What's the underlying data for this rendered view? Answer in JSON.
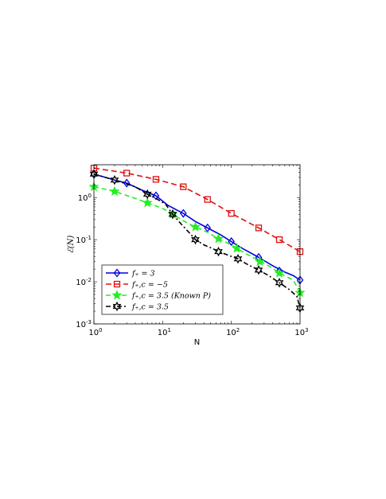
{
  "chart_data": {
    "type": "line",
    "xscale": "log",
    "yscale": "log",
    "xlim": [
      1,
      1000
    ],
    "ylim": [
      0.001,
      6
    ],
    "xlabel": "N",
    "ylabel": "ℰ(N)",
    "x_ticks": [
      {
        "value": 1,
        "base": "10",
        "exp": "0"
      },
      {
        "value": 10,
        "base": "10",
        "exp": "1"
      },
      {
        "value": 100,
        "base": "10",
        "exp": "2"
      },
      {
        "value": 1000,
        "base": "10",
        "exp": "3"
      }
    ],
    "y_ticks": [
      {
        "value": 0.001,
        "base": "10",
        "exp": "-3"
      },
      {
        "value": 0.01,
        "base": "10",
        "exp": "-2"
      },
      {
        "value": 0.1,
        "base": "10",
        "exp": "-1"
      },
      {
        "value": 1,
        "base": "10",
        "exp": "0"
      }
    ],
    "grid": false,
    "legend_position": "bottom-left",
    "series": [
      {
        "name": "f₊ = 3",
        "color": "#0000e0",
        "dash": "",
        "marker": "diamond",
        "line": [
          [
            1,
            3.6
          ],
          [
            2,
            2.6
          ],
          [
            3,
            2.2
          ],
          [
            5,
            1.5
          ],
          [
            8,
            1.1
          ],
          [
            12,
            0.65
          ],
          [
            20,
            0.42
          ],
          [
            30,
            0.27
          ],
          [
            45,
            0.19
          ],
          [
            70,
            0.13
          ],
          [
            100,
            0.09
          ],
          [
            150,
            0.06
          ],
          [
            250,
            0.038
          ],
          [
            400,
            0.024
          ],
          [
            600,
            0.017
          ],
          [
            800,
            0.014
          ],
          [
            1000,
            0.011
          ]
        ],
        "markers": [
          [
            1,
            3.6
          ],
          [
            3,
            2.2
          ],
          [
            8,
            1.1
          ],
          [
            20,
            0.42
          ],
          [
            45,
            0.19
          ],
          [
            100,
            0.09
          ],
          [
            250,
            0.038
          ],
          [
            500,
            0.018
          ],
          [
            1000,
            0.011
          ]
        ]
      },
      {
        "name": "f₊,c = −5",
        "color": "#e01010",
        "dash": "7,4",
        "marker": "square",
        "line": [
          [
            1,
            5.0
          ],
          [
            3,
            3.8
          ],
          [
            8,
            2.7
          ],
          [
            20,
            1.8
          ],
          [
            45,
            0.9
          ],
          [
            100,
            0.42
          ],
          [
            250,
            0.19
          ],
          [
            500,
            0.1
          ],
          [
            1000,
            0.052
          ]
        ],
        "markers": [
          [
            1,
            5.0
          ],
          [
            3,
            3.8
          ],
          [
            8,
            2.7
          ],
          [
            20,
            1.8
          ],
          [
            45,
            0.9
          ],
          [
            100,
            0.42
          ],
          [
            250,
            0.19
          ],
          [
            500,
            0.1
          ],
          [
            1000,
            0.052
          ]
        ]
      },
      {
        "name": "f₊,c = 3.5 (Known P)",
        "color": "#22ee22",
        "dash": "6,4",
        "marker": "star5",
        "line": [
          [
            1,
            1.8
          ],
          [
            2,
            1.4
          ],
          [
            4,
            0.95
          ],
          [
            6,
            0.75
          ],
          [
            10,
            0.55
          ],
          [
            14,
            0.4
          ],
          [
            20,
            0.28
          ],
          [
            30,
            0.2
          ],
          [
            45,
            0.15
          ],
          [
            65,
            0.105
          ],
          [
            100,
            0.075
          ],
          [
            150,
            0.05
          ],
          [
            250,
            0.032
          ],
          [
            400,
            0.021
          ],
          [
            500,
            0.016
          ],
          [
            800,
            0.011
          ],
          [
            1000,
            0.0055
          ]
        ],
        "markers": [
          [
            1,
            1.8
          ],
          [
            2,
            1.4
          ],
          [
            6,
            0.75
          ],
          [
            14,
            0.4
          ],
          [
            30,
            0.2
          ],
          [
            65,
            0.105
          ],
          [
            120,
            0.062
          ],
          [
            260,
            0.03
          ],
          [
            500,
            0.016
          ],
          [
            1000,
            0.0055
          ]
        ]
      },
      {
        "name": "f₊,c = 3.5",
        "color": "#000000",
        "dash": "6,3,2,3",
        "marker": "star6",
        "line": [
          [
            1,
            3.6
          ],
          [
            2,
            2.6
          ],
          [
            4,
            1.8
          ],
          [
            6,
            1.2
          ],
          [
            8,
            0.95
          ],
          [
            11,
            0.7
          ],
          [
            14,
            0.4
          ],
          [
            18,
            0.25
          ],
          [
            25,
            0.14
          ],
          [
            30,
            0.1
          ],
          [
            40,
            0.075
          ],
          [
            55,
            0.06
          ],
          [
            65,
            0.052
          ],
          [
            80,
            0.046
          ],
          [
            100,
            0.04
          ],
          [
            125,
            0.035
          ],
          [
            170,
            0.026
          ],
          [
            250,
            0.019
          ],
          [
            350,
            0.014
          ],
          [
            500,
            0.0095
          ],
          [
            700,
            0.0065
          ],
          [
            900,
            0.0045
          ],
          [
            1000,
            0.0024
          ]
        ],
        "markers": [
          [
            1,
            3.6
          ],
          [
            2,
            2.6
          ],
          [
            6,
            1.2
          ],
          [
            14,
            0.4
          ],
          [
            30,
            0.1
          ],
          [
            65,
            0.052
          ],
          [
            125,
            0.035
          ],
          [
            250,
            0.019
          ],
          [
            500,
            0.0095
          ],
          [
            1000,
            0.0024
          ]
        ]
      }
    ]
  }
}
